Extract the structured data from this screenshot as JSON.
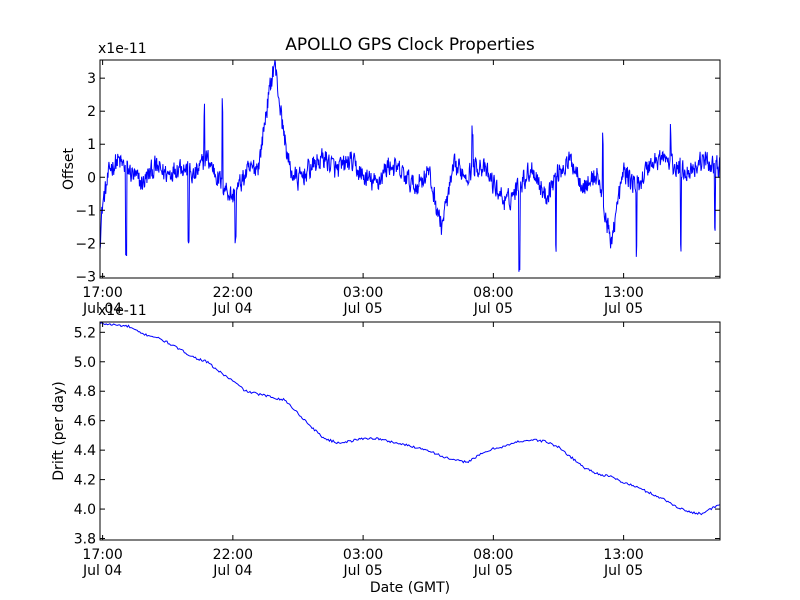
{
  "chart_data": [
    {
      "type": "line",
      "title": "APOLLO GPS Clock Properties",
      "ylabel": "Offset",
      "xlabel": "",
      "y_multiplier": "x1e-11",
      "xlim_hours": [
        16.9,
        40.7
      ],
      "ylim": [
        -3.05,
        3.55
      ],
      "yticks": [
        -3,
        -2,
        -1,
        0,
        1,
        2,
        3
      ],
      "ytick_labels": [
        "−3",
        "−2",
        "−1",
        "0",
        "1",
        "2",
        "3"
      ],
      "xticks_hours": [
        17,
        22,
        27,
        32,
        37
      ],
      "xtick_labels": [
        [
          "17:00",
          "Jul 04"
        ],
        [
          "22:00",
          "Jul 04"
        ],
        [
          "03:00",
          "Jul 05"
        ],
        [
          "08:00",
          "Jul 05"
        ],
        [
          "13:00",
          "Jul 05"
        ]
      ],
      "x": [
        16.9,
        17.0,
        17.3,
        17.6,
        18.0,
        18.5,
        19.0,
        19.5,
        20.0,
        20.5,
        21.0,
        21.5,
        22.0,
        22.5,
        23.0,
        23.3,
        23.6,
        23.9,
        24.2,
        24.5,
        25.0,
        25.5,
        26.0,
        26.5,
        27.0,
        27.5,
        28.0,
        28.5,
        29.0,
        29.5,
        30.0,
        30.5,
        31.0,
        31.5,
        32.0,
        32.5,
        33.0,
        33.5,
        34.0,
        34.5,
        35.0,
        35.5,
        36.0,
        36.5,
        37.0,
        37.5,
        38.0,
        38.5,
        39.0,
        39.5,
        40.0,
        40.7
      ],
      "values": [
        -1.9,
        -0.8,
        0.3,
        0.5,
        0.2,
        -0.2,
        0.3,
        0.1,
        0.4,
        0.0,
        0.6,
        -0.1,
        -0.6,
        0.1,
        0.4,
        2.1,
        3.5,
        1.6,
        0.2,
        -0.1,
        0.3,
        0.6,
        0.2,
        0.5,
        0.0,
        -0.2,
        0.4,
        0.1,
        -0.3,
        0.2,
        -1.5,
        0.3,
        0.1,
        0.4,
        -0.2,
        -0.8,
        -0.2,
        0.3,
        -0.6,
        0.2,
        0.5,
        -0.3,
        0.1,
        -2.0,
        0.2,
        -0.3,
        0.4,
        0.6,
        0.3,
        0.2,
        0.5,
        0.3
      ],
      "noise_amplitude": 0.45,
      "spikes": [
        {
          "x": 17.9,
          "y": -2.4
        },
        {
          "x": 20.3,
          "y": -1.8
        },
        {
          "x": 20.9,
          "y": 2.1
        },
        {
          "x": 21.6,
          "y": 2.1
        },
        {
          "x": 22.1,
          "y": -1.8
        },
        {
          "x": 31.2,
          "y": 1.5
        },
        {
          "x": 33.0,
          "y": -2.6
        },
        {
          "x": 34.4,
          "y": -2.2
        },
        {
          "x": 36.2,
          "y": 1.2
        },
        {
          "x": 37.5,
          "y": -2.3
        },
        {
          "x": 38.8,
          "y": 1.3
        },
        {
          "x": 39.2,
          "y": -2.0
        },
        {
          "x": 40.5,
          "y": -1.3
        }
      ]
    },
    {
      "type": "line",
      "title": "",
      "ylabel": "Drift (per day)",
      "xlabel": "Date (GMT)",
      "y_multiplier": "x1e-11",
      "xlim_hours": [
        16.9,
        40.7
      ],
      "ylim": [
        3.79,
        5.27
      ],
      "yticks": [
        3.8,
        4.0,
        4.2,
        4.4,
        4.6,
        4.8,
        5.0,
        5.2
      ],
      "ytick_labels": [
        "3.8",
        "4.0",
        "4.2",
        "4.4",
        "4.6",
        "4.8",
        "5.0",
        "5.2"
      ],
      "xticks_hours": [
        17,
        22,
        27,
        32,
        37
      ],
      "xtick_labels": [
        [
          "17:00",
          "Jul 04"
        ],
        [
          "22:00",
          "Jul 04"
        ],
        [
          "03:00",
          "Jul 05"
        ],
        [
          "08:00",
          "Jul 05"
        ],
        [
          "13:00",
          "Jul 05"
        ]
      ],
      "x": [
        16.9,
        17.5,
        18.0,
        18.5,
        19.0,
        19.5,
        20.0,
        20.5,
        21.0,
        21.5,
        22.0,
        22.5,
        23.0,
        23.5,
        24.0,
        24.5,
        25.0,
        25.5,
        26.0,
        26.5,
        27.0,
        27.5,
        28.0,
        28.5,
        29.0,
        29.5,
        30.0,
        30.5,
        31.0,
        31.5,
        32.0,
        32.5,
        33.0,
        33.5,
        34.0,
        34.5,
        35.0,
        35.5,
        36.0,
        36.5,
        37.0,
        37.5,
        38.0,
        38.5,
        39.0,
        39.5,
        40.0,
        40.7
      ],
      "values": [
        5.26,
        5.25,
        5.24,
        5.19,
        5.17,
        5.13,
        5.08,
        5.03,
        5.0,
        4.93,
        4.87,
        4.8,
        4.78,
        4.76,
        4.74,
        4.65,
        4.56,
        4.48,
        4.45,
        4.46,
        4.48,
        4.48,
        4.46,
        4.44,
        4.42,
        4.4,
        4.36,
        4.33,
        4.32,
        4.37,
        4.41,
        4.43,
        4.46,
        4.47,
        4.46,
        4.42,
        4.35,
        4.28,
        4.24,
        4.22,
        4.18,
        4.15,
        4.11,
        4.07,
        4.02,
        3.98,
        3.97,
        4.03
      ],
      "noise_amplitude": 0.008,
      "spikes": []
    }
  ]
}
